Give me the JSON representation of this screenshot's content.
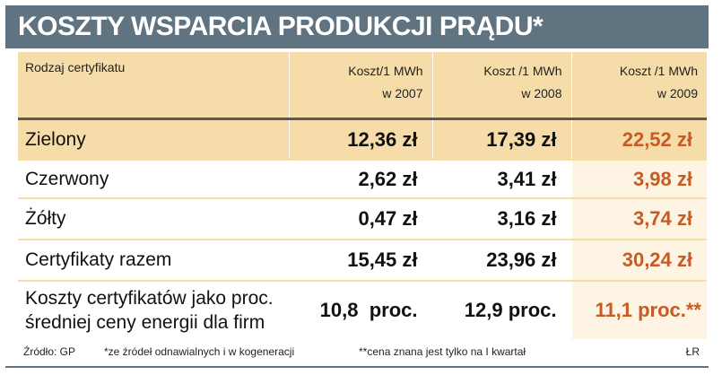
{
  "title": "KOSZTY WSPARCIA PRODUKCJI PRĄDU*",
  "chart_data": {
    "type": "table",
    "title": "KOSZTY WSPARCIA PRODUKCJI PRĄDU*",
    "columns": [
      {
        "line1": "Rodzaj certyfikatu",
        "line2": ""
      },
      {
        "line1": "Koszt/1 MWh",
        "line2": "w 2007"
      },
      {
        "line1": "Koszt /1 MWh",
        "line2": "w 2008"
      },
      {
        "line1": "Koszt /1 MWh",
        "line2": "w 2009"
      }
    ],
    "rows": [
      {
        "label": "Zielony",
        "v2007": "12,36 zł",
        "v2008": "17,39 zł",
        "v2009": "22,52 zł"
      },
      {
        "label": "Czerwony",
        "v2007": "2,62 zł",
        "v2008": "3,41 zł",
        "v2009": "3,98 zł"
      },
      {
        "label": "Żółty",
        "v2007": "0,47 zł",
        "v2008": "3,16 zł",
        "v2009": "3,74 zł"
      },
      {
        "label": "Certyfikaty razem",
        "v2007": "15,45 zł",
        "v2008": "23,96 zł",
        "v2009": "30,24 zł"
      },
      {
        "label_line1": "Koszty certyfikatów jako proc.",
        "label_line2": "średniej ceny energii dla firm",
        "v2007": "10,8  proc.",
        "v2008": "12,9 proc.",
        "v2009": "11,1 proc.**"
      }
    ]
  },
  "footer": {
    "source": "Źródło: GP",
    "note1": "*ze źródeł odnawialnych i w kogeneracji",
    "note2": "**cena znana jest tylko na I kwartał",
    "author": "ŁR"
  },
  "colors": {
    "title_bar": "#5f7381",
    "header_bg": "#f6dca9",
    "highlight_text": "#c75b23",
    "highlight_bg": "#fdf4e3"
  }
}
